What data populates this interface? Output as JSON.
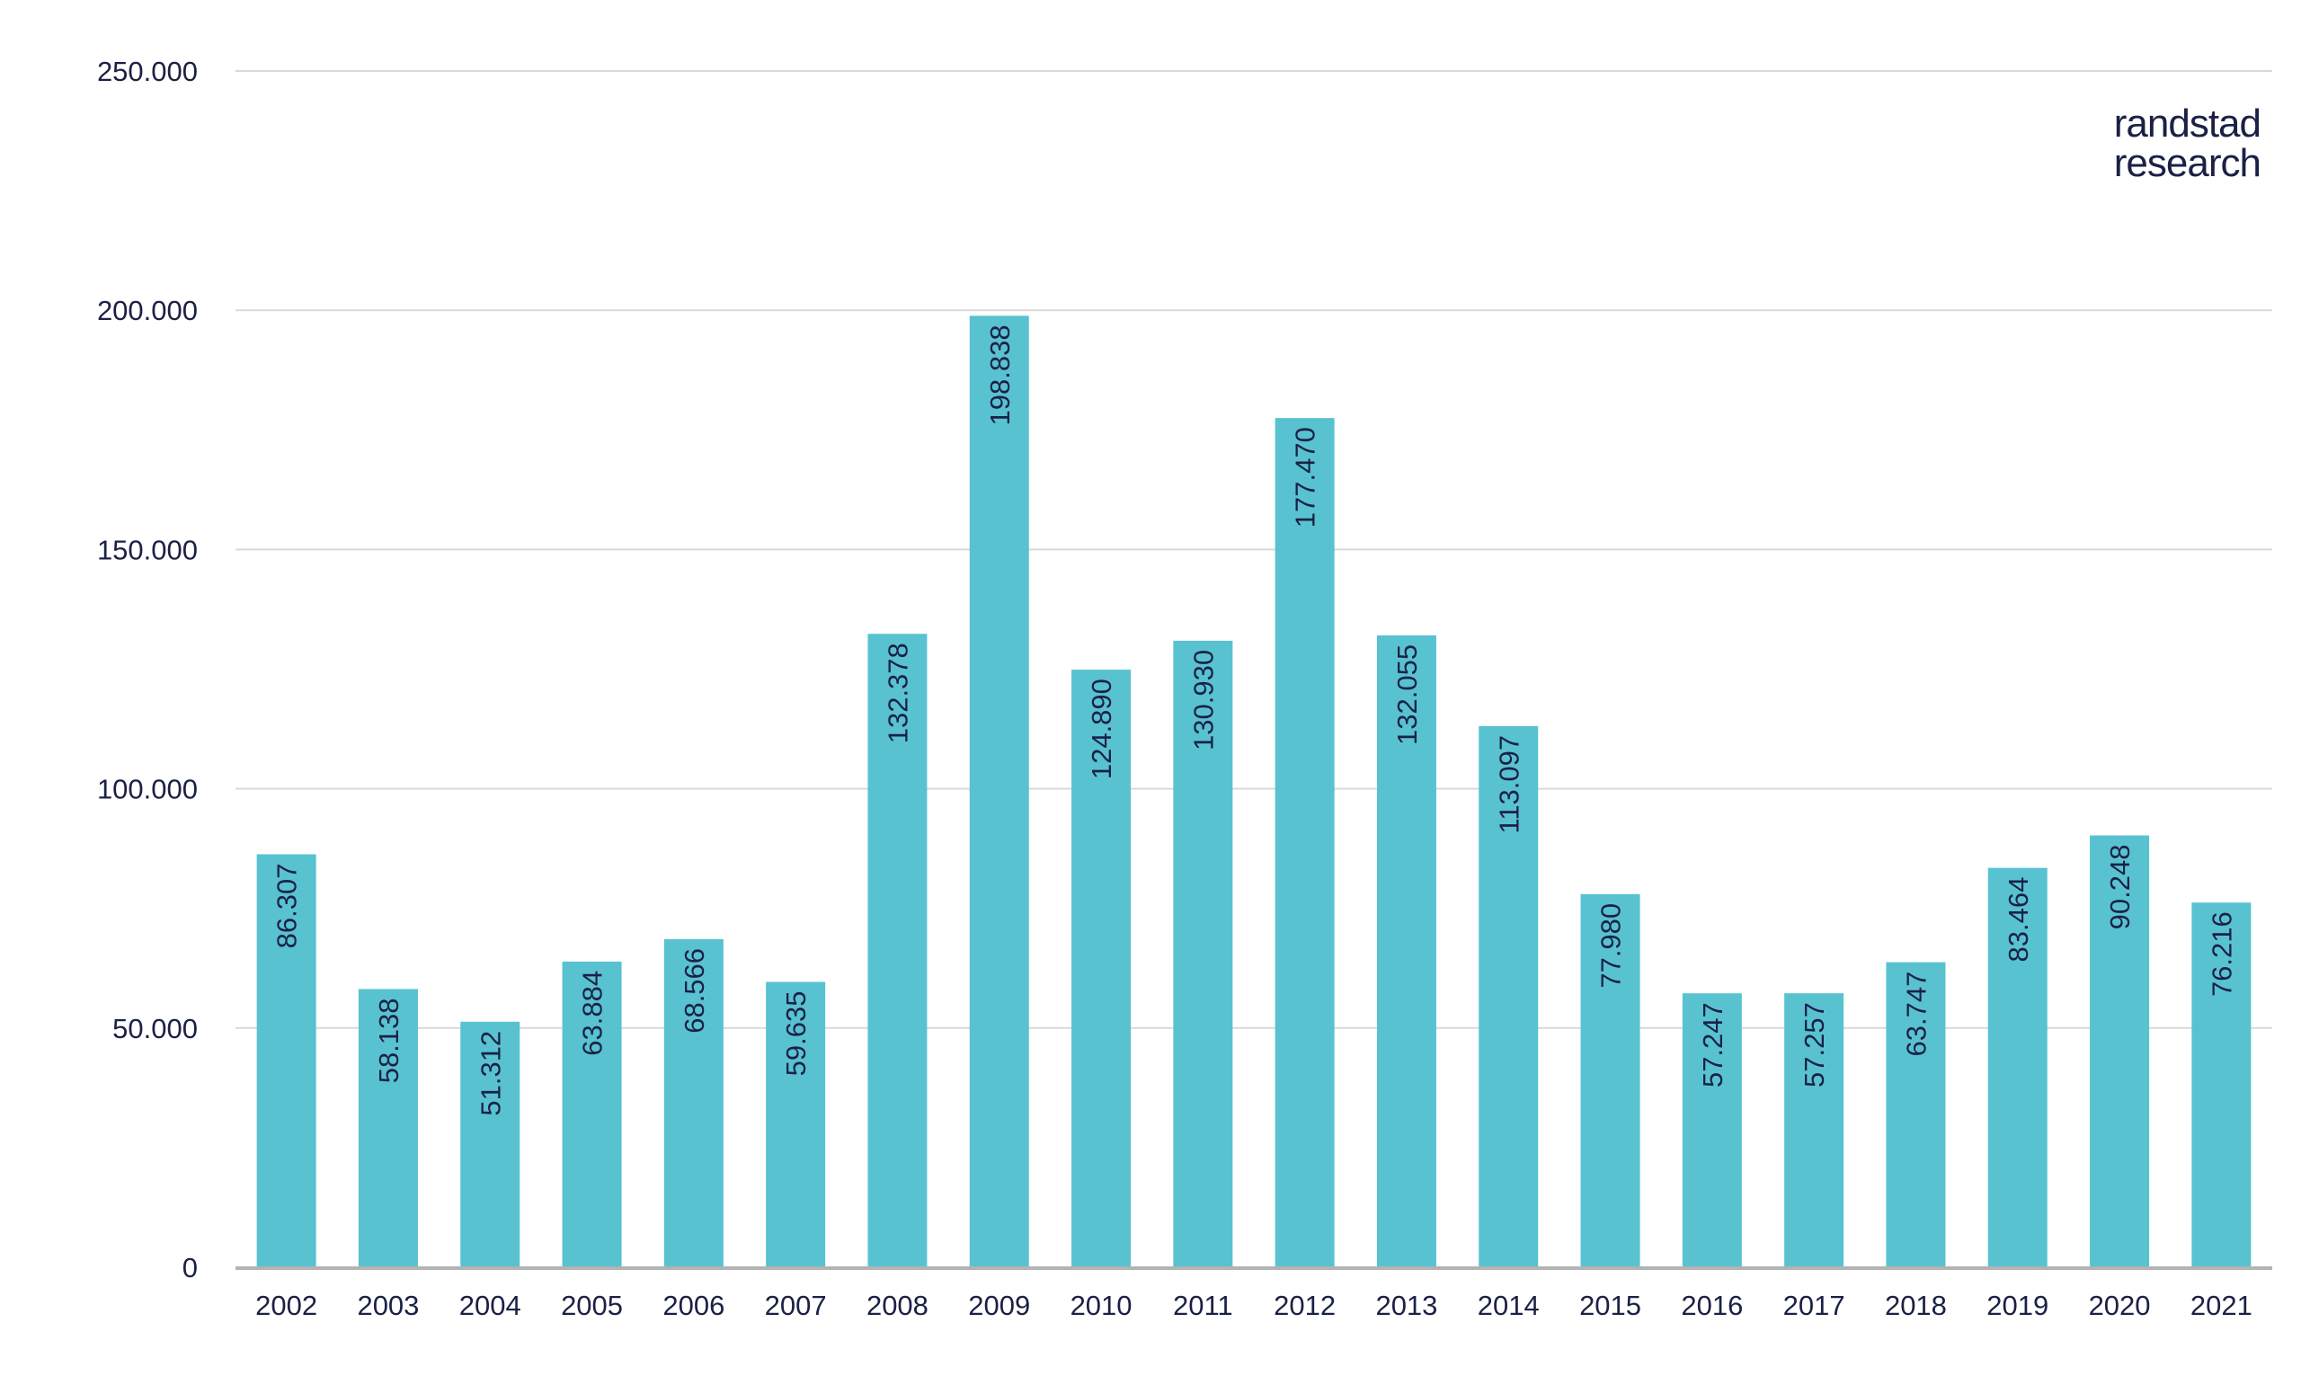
{
  "logo": {
    "line1": "randstad",
    "line2": "research"
  },
  "colors": {
    "bar": "#58c2d0",
    "text": "#1a2145",
    "grid": "#d9d9d9",
    "axis": "#b3b3b3",
    "bar_label": "#1a2145"
  },
  "chart_data": {
    "type": "bar",
    "title": "",
    "xlabel": "",
    "ylabel": "",
    "categories": [
      "2002",
      "2003",
      "2004",
      "2005",
      "2006",
      "2007",
      "2008",
      "2009",
      "2010",
      "2011",
      "2012",
      "2013",
      "2014",
      "2015",
      "2016",
      "2017",
      "2018",
      "2019",
      "2020",
      "2021"
    ],
    "values": [
      86307,
      58138,
      51312,
      63884,
      68566,
      59635,
      132378,
      198838,
      124890,
      130930,
      177470,
      132055,
      113097,
      77980,
      57247,
      57257,
      63747,
      83464,
      90248,
      76216
    ],
    "value_labels": [
      "86.307",
      "58.138",
      "51.312",
      "63.884",
      "68.566",
      "59.635",
      "132.378",
      "198.838",
      "124.890",
      "130.930",
      "177.470",
      "132.055",
      "113.097",
      "77.980",
      "57.247",
      "57.257",
      "63.747",
      "83.464",
      "90.248",
      "76.216"
    ],
    "ylim": [
      0,
      250000
    ],
    "yticks": [
      0,
      50000,
      100000,
      150000,
      200000,
      250000
    ],
    "ytick_labels": [
      "0",
      "50.000",
      "100.000",
      "150.000",
      "200.000",
      "250.000"
    ],
    "grid": true,
    "legend": false
  }
}
